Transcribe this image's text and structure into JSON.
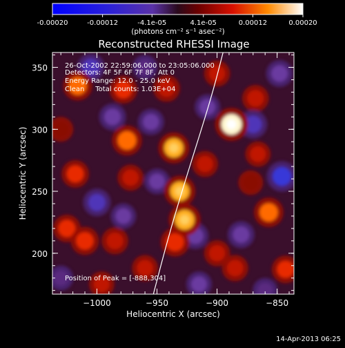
{
  "chart_data": {
    "type": "heatmap",
    "title": "Reconstructed RHESSI Image",
    "colorbar": {
      "tick_labels": [
        "-0.00020",
        "-0.00012",
        "-4.1e-05",
        "4.1e-05",
        "0.00012",
        "0.00020"
      ],
      "tick_values": [
        -0.0002,
        -0.00012,
        -4.1e-05,
        4.1e-05,
        0.00012,
        0.0002
      ],
      "range": [
        -0.0002,
        0.0002
      ],
      "units_label": "(photons cm⁻² s⁻¹ asec⁻²)"
    },
    "xlabel": "Heliocentric X (arcsec)",
    "ylabel": "Heliocentric Y (arcsec)",
    "xlim": [
      -1037,
      -836
    ],
    "ylim": [
      167,
      362
    ],
    "x_ticks": [
      -1000,
      -950,
      -900,
      -850
    ],
    "x_tick_labels": [
      "−1000",
      "−950",
      "−900",
      "−850"
    ],
    "y_ticks": [
      200,
      250,
      300,
      350
    ],
    "y_tick_labels": [
      "200",
      "250",
      "300",
      "350"
    ],
    "grid": false,
    "annotations": {
      "time_range": "26-Oct-2002 22:59:06.000 to 23:05:06.000",
      "detectors": "Detectors: 4F 5F 6F 7F 8F, Att 0",
      "energy_range": "Energy Range: 12.0 - 25.0 keV",
      "method_counts": "Clean     Total counts: 1.03E+04",
      "peak_position": "Position of Peak = [-888,304]"
    },
    "peak": [
      -888,
      304
    ],
    "blobs": [
      {
        "x": -888,
        "y": 304,
        "value": 1.0
      },
      {
        "x": -975,
        "y": 291,
        "value": 0.78
      },
      {
        "x": -936,
        "y": 285,
        "value": 0.85
      },
      {
        "x": -931,
        "y": 250,
        "value": 0.86
      },
      {
        "x": -927,
        "y": 227,
        "value": 0.92
      },
      {
        "x": -935,
        "y": 209,
        "value": 0.7
      },
      {
        "x": -1016,
        "y": 335,
        "value": 0.72
      },
      {
        "x": -1018,
        "y": 264,
        "value": 0.6
      },
      {
        "x": -978,
        "y": 332,
        "value": 0.62
      },
      {
        "x": -942,
        "y": 333,
        "value": 0.55
      },
      {
        "x": -972,
        "y": 261,
        "value": 0.5
      },
      {
        "x": -1010,
        "y": 210,
        "value": 0.65
      },
      {
        "x": -1025,
        "y": 220,
        "value": 0.6
      },
      {
        "x": -985,
        "y": 210,
        "value": 0.55
      },
      {
        "x": -960,
        "y": 188,
        "value": 0.5
      },
      {
        "x": -900,
        "y": 200,
        "value": 0.5
      },
      {
        "x": -885,
        "y": 188,
        "value": 0.52
      },
      {
        "x": -868,
        "y": 325,
        "value": 0.55
      },
      {
        "x": -900,
        "y": 345,
        "value": 0.5
      },
      {
        "x": -866,
        "y": 280,
        "value": 0.45
      },
      {
        "x": -857,
        "y": 233,
        "value": 0.75
      },
      {
        "x": -872,
        "y": 257,
        "value": 0.4
      },
      {
        "x": -843,
        "y": 187,
        "value": 0.6
      },
      {
        "x": -910,
        "y": 272,
        "value": 0.5
      },
      {
        "x": -1030,
        "y": 300,
        "value": 0.4
      },
      {
        "x": -996,
        "y": 175,
        "value": 0.45
      },
      {
        "x": -1000,
        "y": 241,
        "value": -0.6
      },
      {
        "x": -1005,
        "y": 350,
        "value": -0.6
      },
      {
        "x": -987,
        "y": 310,
        "value": -0.55
      },
      {
        "x": -955,
        "y": 306,
        "value": -0.5
      },
      {
        "x": -950,
        "y": 258,
        "value": -0.45
      },
      {
        "x": -918,
        "y": 214,
        "value": -0.5
      },
      {
        "x": -870,
        "y": 304,
        "value": -0.65
      },
      {
        "x": -846,
        "y": 262,
        "value": -0.8
      },
      {
        "x": -848,
        "y": 345,
        "value": -0.55
      },
      {
        "x": -880,
        "y": 215,
        "value": -0.55
      },
      {
        "x": -908,
        "y": 318,
        "value": -0.45
      },
      {
        "x": -978,
        "y": 230,
        "value": -0.45
      },
      {
        "x": -1030,
        "y": 180,
        "value": -0.4
      },
      {
        "x": -960,
        "y": 350,
        "value": -0.4
      },
      {
        "x": -915,
        "y": 175,
        "value": -0.45
      },
      {
        "x": -860,
        "y": 170,
        "value": -0.4
      }
    ],
    "limb_curve": [
      [
        -953,
        167
      ],
      [
        -940,
        215
      ],
      [
        -926,
        260
      ],
      [
        -913,
        300
      ],
      [
        -903,
        332
      ],
      [
        -895,
        362
      ]
    ]
  },
  "footer": {
    "timestamp": "14-Apr-2013 06:25"
  }
}
